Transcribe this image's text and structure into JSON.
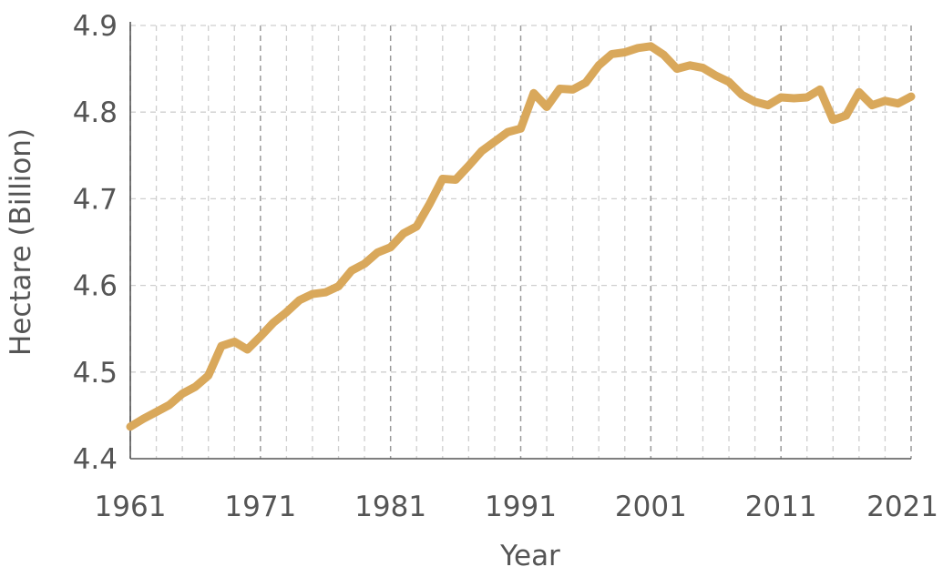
{
  "chart_data": {
    "type": "line",
    "xlabel": "Year",
    "ylabel": "Hectare (Billion)",
    "xlim": [
      1961,
      2021
    ],
    "ylim": [
      4.4,
      4.9
    ],
    "x_ticks": [
      1961,
      1971,
      1981,
      1991,
      2001,
      2011,
      2021
    ],
    "y_ticks": [
      4.4,
      4.5,
      4.6,
      4.7,
      4.8,
      4.9
    ],
    "grid": true,
    "series": [
      {
        "color": "#D9A85B",
        "x": [
          1961,
          1962,
          1963,
          1964,
          1965,
          1966,
          1967,
          1968,
          1969,
          1970,
          1971,
          1972,
          1973,
          1974,
          1975,
          1976,
          1977,
          1978,
          1979,
          1980,
          1981,
          1982,
          1983,
          1984,
          1985,
          1986,
          1987,
          1988,
          1989,
          1990,
          1991,
          1992,
          1993,
          1994,
          1995,
          1996,
          1997,
          1998,
          1999,
          2000,
          2001,
          2002,
          2003,
          2004,
          2005,
          2006,
          2007,
          2008,
          2009,
          2010,
          2011,
          2012,
          2013,
          2014,
          2015,
          2016,
          2017,
          2018,
          2019,
          2020,
          2021
        ],
        "values": [
          4.437,
          4.446,
          4.454,
          4.462,
          4.475,
          4.483,
          4.496,
          4.53,
          4.535,
          4.526,
          4.541,
          4.557,
          4.569,
          4.583,
          4.59,
          4.592,
          4.599,
          4.617,
          4.625,
          4.638,
          4.644,
          4.66,
          4.668,
          4.694,
          4.723,
          4.722,
          4.738,
          4.755,
          4.766,
          4.777,
          4.781,
          4.822,
          4.806,
          4.827,
          4.826,
          4.834,
          4.854,
          4.867,
          4.869,
          4.874,
          4.876,
          4.866,
          4.85,
          4.854,
          4.851,
          4.842,
          4.835,
          4.82,
          4.812,
          4.808,
          4.817,
          4.816,
          4.817,
          4.826,
          4.791,
          4.796,
          4.823,
          4.808,
          4.813,
          4.81,
          4.818
        ]
      }
    ]
  }
}
